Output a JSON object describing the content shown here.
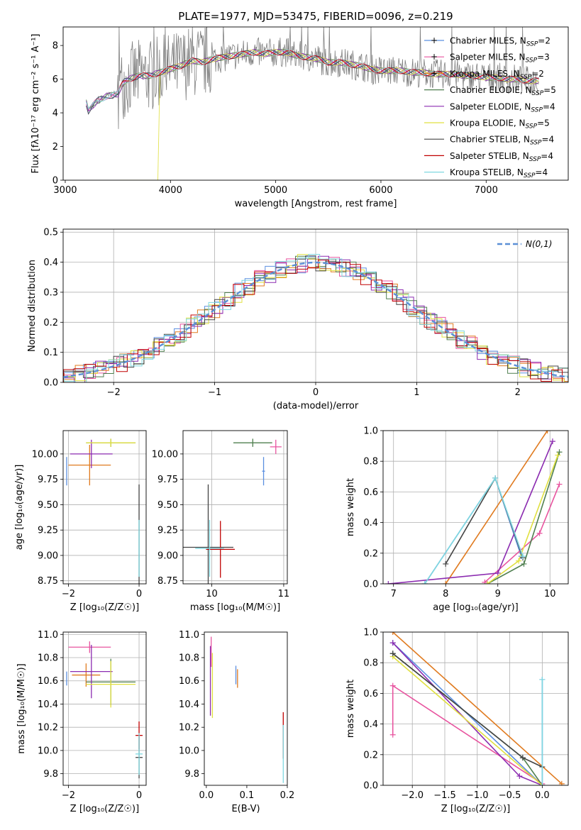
{
  "figure": {
    "title": "PLATE=1977, MJD=53475, FIBERID=0096, z=0.219"
  },
  "models": [
    {
      "name": "Chabrier MILES",
      "nssp": "2",
      "color": "#5b8fe0"
    },
    {
      "name": "Salpeter MILES",
      "nssp": "3",
      "color": "#e8549f"
    },
    {
      "name": "Kroupa MILES",
      "nssp": "2",
      "color": "#e07b20"
    },
    {
      "name": "Chabrier ELODIE",
      "nssp": "5",
      "color": "#4f7f4f"
    },
    {
      "name": "Salpeter ELODIE",
      "nssp": "4",
      "color": "#8b2bb0"
    },
    {
      "name": "Kroupa ELODIE",
      "nssp": "5",
      "color": "#e0e040"
    },
    {
      "name": "Chabrier STELIB",
      "nssp": "4",
      "color": "#444444"
    },
    {
      "name": "Salpeter STELIB",
      "nssp": "4",
      "color": "#c00000"
    },
    {
      "name": "Kroupa STELIB",
      "nssp": "4",
      "color": "#7fd8e0"
    }
  ],
  "chart_data": [
    {
      "id": "spectrum",
      "type": "line",
      "xlabel": "wavelength [Angstrom, rest frame]",
      "ylabel": "Flux [f_λ 10^-17 erg cm^-2 s^-1 A^-1]",
      "xlim": [
        2980,
        7780
      ],
      "ylim": [
        0,
        9.1
      ],
      "xticks": [
        3000,
        4000,
        5000,
        6000,
        7000
      ],
      "yticks": [
        0,
        2,
        4,
        6,
        8
      ],
      "grid": false,
      "legend_position": "right",
      "series_note": "data spectrum in grey with 9 model fits overlaid",
      "data_x": [
        3200,
        3220,
        3300,
        3400,
        3500,
        3520,
        3550,
        3600,
        3700,
        3800,
        3850,
        3900,
        4000,
        4100,
        4200,
        4300,
        4400,
        4500,
        4600,
        4700,
        4800,
        4900,
        5000,
        5100,
        5200,
        5300,
        5400,
        5500,
        5600,
        5700,
        5800,
        5900,
        6000,
        6100,
        6200,
        6300,
        6400,
        6500,
        6600,
        6700,
        6800,
        6900,
        7000,
        7100,
        7200,
        7300,
        7400,
        7500
      ],
      "data_y": [
        4.6,
        4.1,
        4.7,
        5.0,
        5.1,
        5.4,
        5.8,
        6.0,
        6.2,
        6.2,
        6.3,
        6.4,
        6.6,
        6.8,
        7.1,
        7.0,
        7.2,
        7.3,
        7.4,
        7.5,
        7.6,
        7.5,
        7.6,
        7.6,
        7.4,
        7.3,
        7.2,
        7.0,
        7.0,
        6.9,
        6.8,
        6.6,
        6.5,
        6.5,
        6.5,
        6.4,
        6.4,
        6.3,
        6.3,
        6.3,
        6.2,
        6.2,
        6.1,
        6.1,
        6.0,
        6.0,
        5.9,
        5.9
      ]
    },
    {
      "id": "residuals",
      "type": "line",
      "xlabel": "(data-model)/error",
      "ylabel": "Normed distribution",
      "xlim": [
        -2.5,
        2.5
      ],
      "ylim": [
        0,
        0.51
      ],
      "xticks": [
        -2,
        -1,
        0,
        1,
        2
      ],
      "yticks": [
        0,
        0.1,
        0.2,
        0.3,
        0.4,
        0.5
      ],
      "grid": true,
      "legend_position": "top-right",
      "reference_curve": "N(0,1)",
      "series_note": "step histograms for each model, overlaid on standard normal"
    },
    {
      "id": "age_vs_Z",
      "type": "scatter",
      "xlabel": "Z [log10(Z/Z☉)]",
      "ylabel": "age [log10(age/yr)]",
      "xlim": [
        -2.15,
        0.2
      ],
      "ylim": [
        8.72,
        10.23
      ],
      "xticks": [
        -2,
        0
      ],
      "yticks": [
        8.75,
        9.0,
        9.25,
        9.5,
        9.75,
        10.0
      ],
      "grid": true,
      "points": [
        {
          "model": 0,
          "x": -2.05,
          "y": 9.83,
          "xerr": 0.0,
          "yerr": 0.14
        },
        {
          "model": 2,
          "x": -1.4,
          "y": 9.89,
          "xerr": 0.6,
          "yerr": 0.2
        },
        {
          "model": 3,
          "x": -0.8,
          "y": 10.11,
          "xerr": 0.7,
          "yerr": 0.04
        },
        {
          "model": 4,
          "x": -1.35,
          "y": 10.0,
          "xerr": 0.6,
          "yerr": 0.14
        },
        {
          "model": 5,
          "x": -0.8,
          "y": 10.11,
          "xerr": 0.7,
          "yerr": 0.04
        },
        {
          "model": 6,
          "x": 0.0,
          "y": 9.08,
          "xerr": 0.0,
          "yerr": 0.62
        },
        {
          "model": 8,
          "x": 0.0,
          "y": 9.07,
          "xerr": 0.0,
          "yerr": 0.28
        }
      ]
    },
    {
      "id": "age_vs_mass",
      "type": "scatter",
      "xlabel": "mass [log10(M/M☉)]",
      "ylabel": "",
      "xlim": [
        9.6,
        11.05
      ],
      "ylim": [
        8.72,
        10.23
      ],
      "xticks": [
        10,
        11
      ],
      "yticks": [
        8.75,
        9.0,
        9.25,
        9.5,
        9.75,
        10.0
      ],
      "grid": true,
      "points": [
        {
          "model": 0,
          "x": 10.72,
          "y": 9.83,
          "xerr": 0.02,
          "yerr": 0.14
        },
        {
          "model": 1,
          "x": 10.89,
          "y": 10.07,
          "xerr": 0.08,
          "yerr": 0.07
        },
        {
          "model": 3,
          "x": 10.57,
          "y": 10.11,
          "xerr": 0.27,
          "yerr": 0.04
        },
        {
          "model": 6,
          "x": 9.95,
          "y": 9.08,
          "xerr": 0.35,
          "yerr": 0.62
        },
        {
          "model": 7,
          "x": 10.12,
          "y": 9.06,
          "xerr": 0.2,
          "yerr": 0.28
        },
        {
          "model": 8,
          "x": 9.97,
          "y": 9.07,
          "xerr": 0.2,
          "yerr": 0.28
        }
      ]
    },
    {
      "id": "weight_vs_age",
      "type": "line",
      "xlabel": "age [log10(age/yr)]",
      "ylabel": "mass weight",
      "xlim": [
        6.8,
        10.35
      ],
      "ylim": [
        0,
        1.0
      ],
      "xticks": [
        7,
        8,
        9,
        10
      ],
      "yticks": [
        0,
        0.2,
        0.4,
        0.6,
        0.8,
        1.0
      ],
      "grid": true,
      "series": [
        {
          "model": 0,
          "x": [
            7.6,
            8.95,
            9.45
          ],
          "y": [
            0.0,
            0.69,
            0.18
          ]
        },
        {
          "model": 1,
          "x": [
            8.75,
            9.8,
            10.18
          ],
          "y": [
            0.01,
            0.33,
            0.65
          ]
        },
        {
          "model": 2,
          "x": [
            8.0,
            9.95
          ],
          "y": [
            0.0,
            1.0
          ]
        },
        {
          "model": 3,
          "x": [
            8.8,
            9.5,
            10.18
          ],
          "y": [
            0.0,
            0.13,
            0.86
          ]
        },
        {
          "model": 4,
          "x": [
            6.9,
            9.0,
            10.05
          ],
          "y": [
            0.0,
            0.07,
            0.93
          ]
        },
        {
          "model": 5,
          "x": [
            8.8,
            9.4,
            10.15
          ],
          "y": [
            0.0,
            0.15,
            0.84
          ]
        },
        {
          "model": 6,
          "x": [
            8.0,
            8.95,
            9.48
          ],
          "y": [
            0.13,
            0.69,
            0.17
          ]
        },
        {
          "model": 8,
          "x": [
            7.6,
            8.95,
            9.48
          ],
          "y": [
            0.0,
            0.69,
            0.18
          ]
        }
      ]
    },
    {
      "id": "mass_vs_Z",
      "type": "scatter",
      "xlabel": "Z [log10(Z/Z☉)]",
      "ylabel": "mass [log10(M/M☉)]",
      "xlim": [
        -2.15,
        0.2
      ],
      "ylim": [
        9.7,
        11.02
      ],
      "xticks": [
        -2,
        0
      ],
      "yticks": [
        9.8,
        10.0,
        10.2,
        10.4,
        10.6,
        10.8,
        11.0
      ],
      "grid": true,
      "points": [
        {
          "model": 0,
          "x": -2.05,
          "y": 10.62,
          "xerr": 0.0,
          "yerr": 0.06
        },
        {
          "model": 1,
          "x": -1.4,
          "y": 10.89,
          "xerr": 0.6,
          "yerr": 0.05
        },
        {
          "model": 2,
          "x": -1.5,
          "y": 10.65,
          "xerr": 0.4,
          "yerr": 0.1
        },
        {
          "model": 3,
          "x": -0.8,
          "y": 10.59,
          "xerr": 0.7,
          "yerr": 0.2
        },
        {
          "model": 4,
          "x": -1.35,
          "y": 10.68,
          "xerr": 0.6,
          "yerr": 0.23
        },
        {
          "model": 5,
          "x": -0.8,
          "y": 10.57,
          "xerr": 0.7,
          "yerr": 0.2
        },
        {
          "model": 6,
          "x": 0.0,
          "y": 9.94,
          "xerr": 0.1,
          "yerr": 0.18
        },
        {
          "model": 7,
          "x": 0.0,
          "y": 10.13,
          "xerr": 0.1,
          "yerr": 0.12
        },
        {
          "model": 8,
          "x": 0.0,
          "y": 9.97,
          "xerr": 0.1,
          "yerr": 0.18
        }
      ]
    },
    {
      "id": "mass_vs_EBV",
      "type": "scatter",
      "xlabel": "E(B-V)",
      "ylabel": "",
      "xlim": [
        -0.005,
        0.2
      ],
      "ylim": [
        9.7,
        11.02
      ],
      "xticks": [
        0.0,
        0.1,
        0.2
      ],
      "yticks": [
        9.8,
        10.0,
        10.2,
        10.4,
        10.6,
        10.8,
        11.0
      ],
      "grid": false,
      "points": [
        {
          "model": 1,
          "x": 0.012,
          "y": 10.85,
          "xerr": 0.0,
          "yerr": 0.13
        },
        {
          "model": 4,
          "x": 0.01,
          "y": 10.6,
          "xerr": 0.0,
          "yerr": 0.3
        },
        {
          "model": 5,
          "x": 0.015,
          "y": 10.56,
          "xerr": 0.0,
          "yerr": 0.28
        },
        {
          "model": 0,
          "x": 0.073,
          "y": 10.65,
          "xerr": 0.0,
          "yerr": 0.08
        },
        {
          "model": 2,
          "x": 0.077,
          "y": 10.62,
          "xerr": 0.0,
          "yerr": 0.08
        },
        {
          "model": 7,
          "x": 0.19,
          "y": 10.13,
          "xerr": 0.0,
          "yerr": 0.2
        },
        {
          "model": 8,
          "x": 0.19,
          "y": 9.97,
          "xerr": 0.0,
          "yerr": 0.25
        }
      ]
    },
    {
      "id": "weight_vs_Z",
      "type": "line",
      "xlabel": "Z [log10(Z/Z☉)]",
      "ylabel": "mass weight",
      "xlim": [
        -2.45,
        0.4
      ],
      "ylim": [
        0,
        1.0
      ],
      "xticks": [
        -2.0,
        -1.5,
        -1.0,
        -0.5,
        0.0
      ],
      "yticks": [
        0,
        0.2,
        0.4,
        0.6,
        0.8,
        1.0
      ],
      "grid": true,
      "series": [
        {
          "model": 0,
          "x": [
            -2.3,
            0.0,
            0.0
          ],
          "y": [
            0.93,
            0.0,
            0.69
          ]
        },
        {
          "model": 1,
          "x": [
            -2.3,
            -2.3,
            0.0
          ],
          "y": [
            0.33,
            0.65,
            0.01
          ]
        },
        {
          "model": 2,
          "x": [
            -2.3,
            0.3
          ],
          "y": [
            1.0,
            0.01
          ]
        },
        {
          "model": 3,
          "x": [
            -2.3,
            -0.3,
            0.0
          ],
          "y": [
            0.86,
            0.18,
            0.0
          ]
        },
        {
          "model": 4,
          "x": [
            -2.3,
            -0.35,
            0.0
          ],
          "y": [
            0.93,
            0.06,
            0.0
          ]
        },
        {
          "model": 5,
          "x": [
            -2.3,
            0.0
          ],
          "y": [
            0.84,
            0.0
          ]
        },
        {
          "model": 6,
          "x": [
            -2.3,
            -0.3,
            0.0
          ],
          "y": [
            0.86,
            0.18,
            0.12
          ]
        },
        {
          "model": 8,
          "x": [
            0.0,
            0.0
          ],
          "y": [
            0.0,
            0.69
          ]
        }
      ]
    }
  ]
}
